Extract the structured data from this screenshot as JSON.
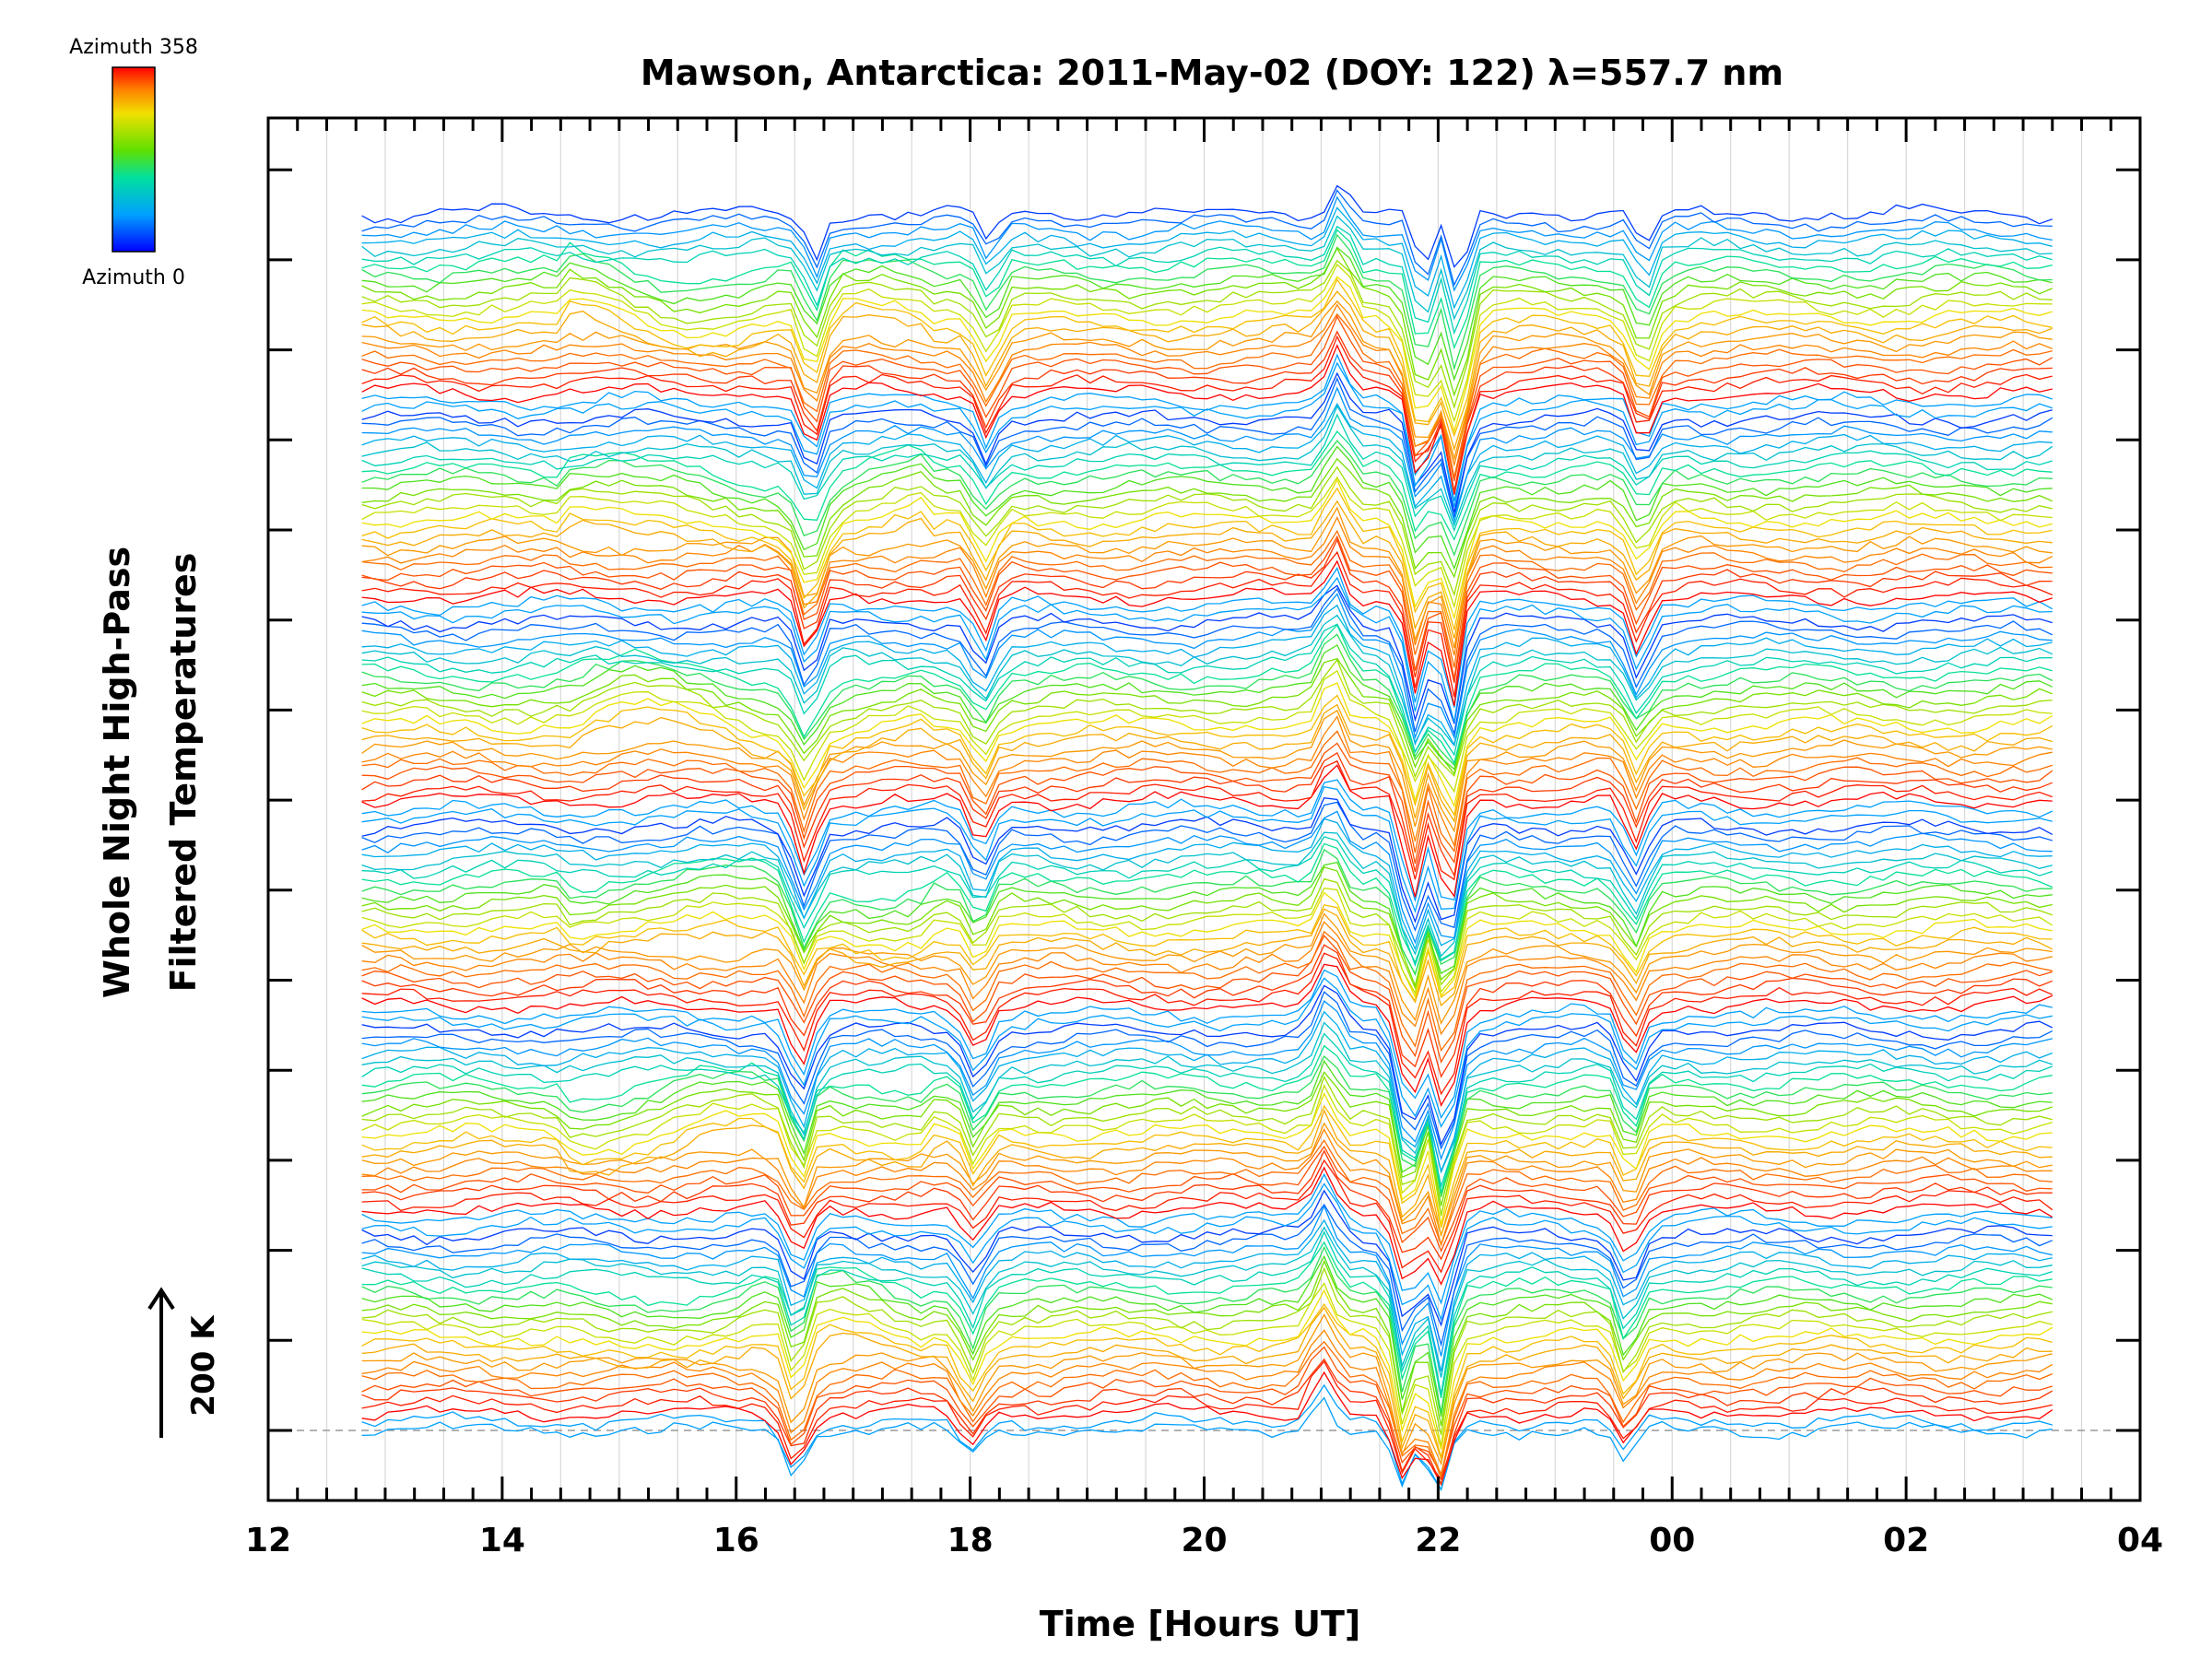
{
  "chart_data": {
    "type": "line",
    "title": "Mawson, Antarctica: 2011-May-02 (DOY: 122) λ=557.7 nm",
    "xlabel": "Time [Hours UT]",
    "ylabel": [
      "Whole Night High-Pass",
      "Filtered Temperatures"
    ],
    "x_ticks": [
      "12",
      "14",
      "16",
      "18",
      "20",
      "22",
      "00",
      "02",
      "04"
    ],
    "x_range_hours_ut": [
      12,
      28
    ],
    "data_start_hours_ut": 12.8,
    "data_end_hours_ut": 27.25,
    "y_scale_bar": "200 K",
    "colorbar": {
      "top_label": "Azimuth 358",
      "bottom_label": "Azimuth 0",
      "colormap": "rainbow (blue → green → yellow → red)"
    },
    "grid": "light vertical lines each half hour",
    "colors": {
      "axis": "#000000",
      "grid": "#d8d8d8",
      "baseline": "#999999"
    },
    "dip_features_hours_ut": [
      {
        "time": 16.5,
        "depth_K": 55
      },
      {
        "time": 18.0,
        "depth_K": 40
      },
      {
        "time": 21.0,
        "rise_K": 35
      },
      {
        "time": 21.7,
        "depth_K": 85
      },
      {
        "time": 22.0,
        "depth_K": 95
      },
      {
        "time": 23.6,
        "depth_K": 45
      }
    ],
    "traces": {
      "count": 144,
      "bands": 6,
      "note": "stacked azimuth traces, each offset upward; colour encodes azimuth"
    }
  }
}
